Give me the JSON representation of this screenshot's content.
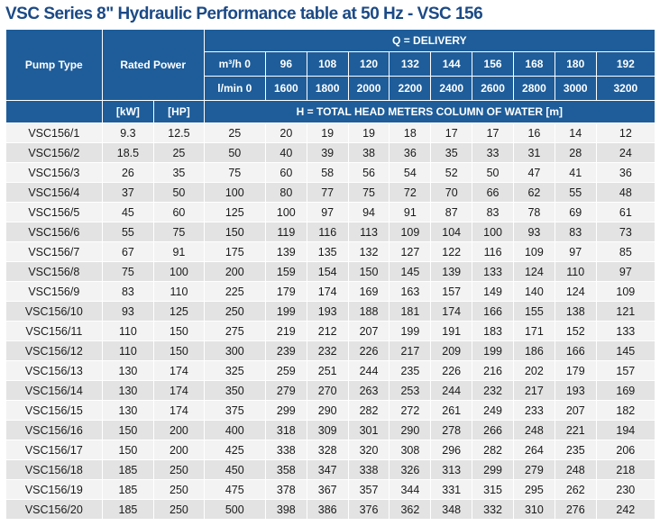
{
  "title": "VSC Series 8\" Hydraulic Performance table at 50 Hz - VSC 156",
  "header": {
    "pump_type": "Pump Type",
    "rated_power": "Rated Power",
    "delivery": "Q = DELIVERY",
    "m3h_label": "m³/h 0",
    "lmin_label": "l/min 0",
    "kw": "[kW]",
    "hp": "[HP]",
    "head": "H = TOTAL HEAD METERS COLUMN OF WATER [m]",
    "m3h": [
      "96",
      "108",
      "120",
      "132",
      "144",
      "156",
      "168",
      "180",
      "192"
    ],
    "lmin": [
      "1600",
      "1800",
      "2000",
      "2200",
      "2400",
      "2600",
      "2800",
      "3000",
      "3200"
    ]
  },
  "rows": [
    {
      "model": "VSC156/1",
      "kw": "9.3",
      "hp": "12.5",
      "h": [
        "25",
        "20",
        "19",
        "19",
        "18",
        "17",
        "17",
        "16",
        "14",
        "12"
      ]
    },
    {
      "model": "VSC156/2",
      "kw": "18.5",
      "hp": "25",
      "h": [
        "50",
        "40",
        "39",
        "38",
        "36",
        "35",
        "33",
        "31",
        "28",
        "24"
      ]
    },
    {
      "model": "VSC156/3",
      "kw": "26",
      "hp": "35",
      "h": [
        "75",
        "60",
        "58",
        "56",
        "54",
        "52",
        "50",
        "47",
        "41",
        "36"
      ]
    },
    {
      "model": "VSC156/4",
      "kw": "37",
      "hp": "50",
      "h": [
        "100",
        "80",
        "77",
        "75",
        "72",
        "70",
        "66",
        "62",
        "55",
        "48"
      ]
    },
    {
      "model": "VSC156/5",
      "kw": "45",
      "hp": "60",
      "h": [
        "125",
        "100",
        "97",
        "94",
        "91",
        "87",
        "83",
        "78",
        "69",
        "61"
      ]
    },
    {
      "model": "VSC156/6",
      "kw": "55",
      "hp": "75",
      "h": [
        "150",
        "119",
        "116",
        "113",
        "109",
        "104",
        "100",
        "93",
        "83",
        "73"
      ]
    },
    {
      "model": "VSC156/7",
      "kw": "67",
      "hp": "91",
      "h": [
        "175",
        "139",
        "135",
        "132",
        "127",
        "122",
        "116",
        "109",
        "97",
        "85"
      ]
    },
    {
      "model": "VSC156/8",
      "kw": "75",
      "hp": "100",
      "h": [
        "200",
        "159",
        "154",
        "150",
        "145",
        "139",
        "133",
        "124",
        "110",
        "97"
      ]
    },
    {
      "model": "VSC156/9",
      "kw": "83",
      "hp": "110",
      "h": [
        "225",
        "179",
        "174",
        "169",
        "163",
        "157",
        "149",
        "140",
        "124",
        "109"
      ]
    },
    {
      "model": "VSC156/10",
      "kw": "93",
      "hp": "125",
      "h": [
        "250",
        "199",
        "193",
        "188",
        "181",
        "174",
        "166",
        "155",
        "138",
        "121"
      ]
    },
    {
      "model": "VSC156/11",
      "kw": "110",
      "hp": "150",
      "h": [
        "275",
        "219",
        "212",
        "207",
        "199",
        "191",
        "183",
        "171",
        "152",
        "133"
      ]
    },
    {
      "model": "VSC156/12",
      "kw": "110",
      "hp": "150",
      "h": [
        "300",
        "239",
        "232",
        "226",
        "217",
        "209",
        "199",
        "186",
        "166",
        "145"
      ]
    },
    {
      "model": "VSC156/13",
      "kw": "130",
      "hp": "174",
      "h": [
        "325",
        "259",
        "251",
        "244",
        "235",
        "226",
        "216",
        "202",
        "179",
        "157"
      ]
    },
    {
      "model": "VSC156/14",
      "kw": "130",
      "hp": "174",
      "h": [
        "350",
        "279",
        "270",
        "263",
        "253",
        "244",
        "232",
        "217",
        "193",
        "169"
      ]
    },
    {
      "model": "VSC156/15",
      "kw": "130",
      "hp": "174",
      "h": [
        "375",
        "299",
        "290",
        "282",
        "272",
        "261",
        "249",
        "233",
        "207",
        "182"
      ]
    },
    {
      "model": "VSC156/16",
      "kw": "150",
      "hp": "200",
      "h": [
        "400",
        "318",
        "309",
        "301",
        "290",
        "278",
        "266",
        "248",
        "221",
        "194"
      ]
    },
    {
      "model": "VSC156/17",
      "kw": "150",
      "hp": "200",
      "h": [
        "425",
        "338",
        "328",
        "320",
        "308",
        "296",
        "282",
        "264",
        "235",
        "206"
      ]
    },
    {
      "model": "VSC156/18",
      "kw": "185",
      "hp": "250",
      "h": [
        "450",
        "358",
        "347",
        "338",
        "326",
        "313",
        "299",
        "279",
        "248",
        "218"
      ]
    },
    {
      "model": "VSC156/19",
      "kw": "185",
      "hp": "250",
      "h": [
        "475",
        "378",
        "367",
        "357",
        "344",
        "331",
        "315",
        "295",
        "262",
        "230"
      ]
    },
    {
      "model": "VSC156/20",
      "kw": "185",
      "hp": "250",
      "h": [
        "500",
        "398",
        "386",
        "376",
        "362",
        "348",
        "332",
        "310",
        "276",
        "242"
      ]
    }
  ],
  "colors": {
    "header_bg": "#1e5d9a",
    "title": "#1b4a86",
    "row_light": "#f3f3f3",
    "row_dark": "#e3e3e3"
  }
}
